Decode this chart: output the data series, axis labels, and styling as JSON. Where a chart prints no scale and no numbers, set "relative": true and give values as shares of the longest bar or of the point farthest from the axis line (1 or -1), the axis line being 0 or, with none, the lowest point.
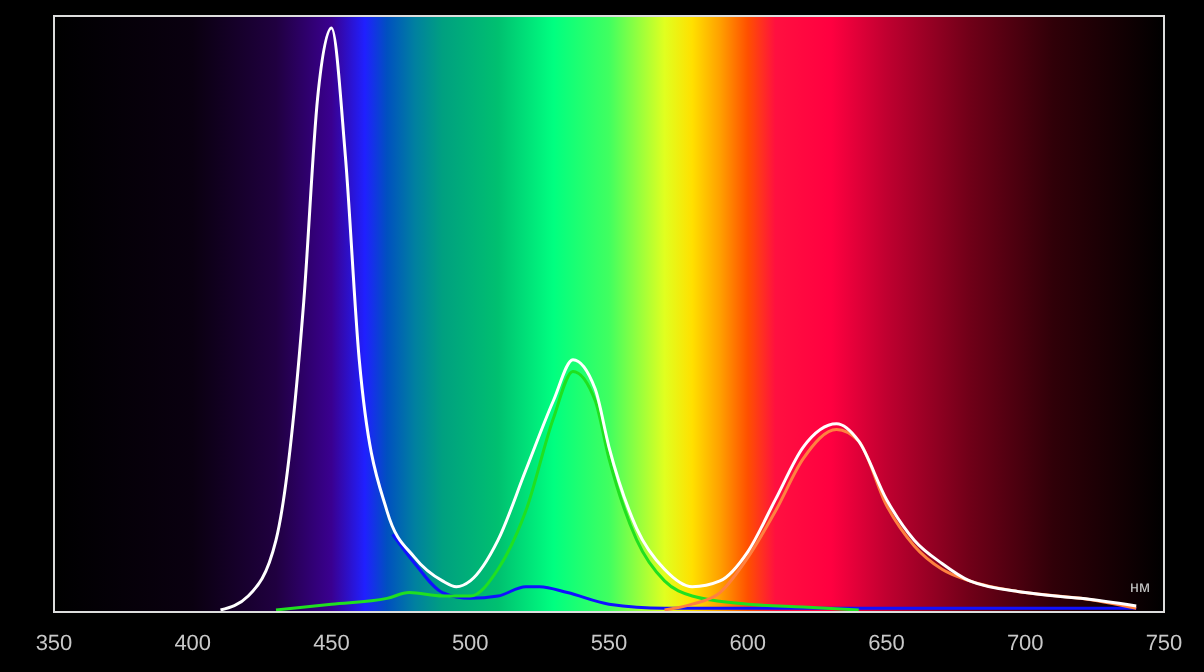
{
  "chart_data": {
    "type": "line",
    "relative": true,
    "xlabel": "нм",
    "xlim": [
      350,
      750
    ],
    "xticks": [
      350,
      400,
      450,
      500,
      550,
      600,
      650,
      700,
      750
    ],
    "grid": false,
    "line_style": "solid",
    "series": [
      {
        "color": "#1010ff",
        "x": [
          472,
          480,
          490,
          500,
          510,
          520,
          525,
          535,
          550,
          570,
          600,
          740
        ],
        "values": [
          0.13,
          0.08,
          0.03,
          0.02,
          0.024,
          0.04,
          0.04,
          0.03,
          0.01,
          0.003,
          0.003,
          0.003
        ]
      },
      {
        "color": "#20e020",
        "x": [
          430,
          450,
          470,
          478,
          490,
          500,
          510,
          520,
          530,
          537,
          545,
          550,
          560,
          570,
          580,
          600,
          620,
          640
        ],
        "values": [
          0,
          0.01,
          0.02,
          0.03,
          0.024,
          0.024,
          0.07,
          0.17,
          0.33,
          0.41,
          0.36,
          0.26,
          0.12,
          0.05,
          0.024,
          0.01,
          0.005,
          0
        ]
      },
      {
        "color": "#ff8040",
        "x": [
          570,
          580,
          590,
          600,
          610,
          620,
          632,
          640,
          650,
          660,
          670,
          680,
          700,
          720,
          740
        ],
        "values": [
          0,
          0.01,
          0.03,
          0.09,
          0.17,
          0.26,
          0.31,
          0.29,
          0.18,
          0.11,
          0.07,
          0.05,
          0.03,
          0.02,
          0.003
        ]
      },
      {
        "color": "#ffffff",
        "x": [
          410,
          420,
          430,
          440,
          445,
          450,
          455,
          460,
          470,
          480,
          490,
          495,
          500,
          510,
          520,
          530,
          537,
          545,
          550,
          560,
          570,
          580,
          590,
          600,
          610,
          620,
          632,
          640,
          650,
          660,
          670,
          680,
          700,
          720,
          740
        ],
        "values": [
          0,
          0.024,
          0.12,
          0.53,
          0.88,
          1.0,
          0.78,
          0.43,
          0.17,
          0.09,
          0.05,
          0.04,
          0.05,
          0.12,
          0.24,
          0.36,
          0.43,
          0.38,
          0.28,
          0.14,
          0.07,
          0.04,
          0.05,
          0.1,
          0.19,
          0.28,
          0.32,
          0.29,
          0.19,
          0.12,
          0.08,
          0.05,
          0.03,
          0.02,
          0.007
        ]
      }
    ]
  }
}
